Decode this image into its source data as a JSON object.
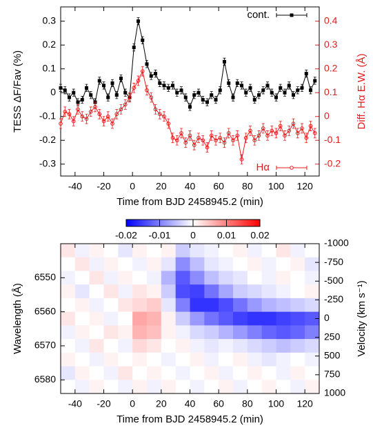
{
  "chart_data": [
    {
      "type": "line",
      "xlabel": "Time from BJD 2458945.2 (min)",
      "ylabel": "TESS ΔF/Fav (%)",
      "y2label": "Diff. Hα E.W. (Å)",
      "xlim": [
        -50,
        130
      ],
      "xticks": [
        -40,
        -20,
        0,
        20,
        40,
        60,
        80,
        100,
        120
      ],
      "ylim": [
        -0.35,
        0.36
      ],
      "yticks": [
        -0.3,
        -0.2,
        -0.1,
        0,
        0.1,
        0.2,
        0.3
      ],
      "y2lim": [
        -0.25,
        0.46
      ],
      "y2ticks": [
        -0.2,
        -0.1,
        0,
        0.1,
        0.2,
        0.3,
        0.4
      ],
      "x": [
        -50,
        -47,
        -44,
        -41,
        -38,
        -35,
        -32,
        -29,
        -26,
        -23,
        -20,
        -17,
        -14,
        -11,
        -8,
        -5,
        -2,
        1,
        4,
        7,
        10,
        13,
        16,
        19,
        22,
        25,
        28,
        31,
        34,
        37,
        40,
        43,
        46,
        49,
        52,
        55,
        58,
        61,
        64,
        67,
        70,
        73,
        76,
        79,
        82,
        85,
        88,
        91,
        94,
        97,
        100,
        103,
        106,
        109,
        112,
        115,
        118,
        121,
        124,
        127
      ],
      "series": [
        {
          "name": "cont.",
          "color": "#000000",
          "marker": "square",
          "legend": "top-right",
          "error": 0.015,
          "values": [
            0.02,
            0.01,
            -0.02,
            0,
            -0.04,
            -0.03,
            0.02,
            -0.01,
            -0.04,
            0.05,
            0.03,
            -0.02,
            0.04,
            -0.01,
            0.06,
            0,
            -0.02,
            0.19,
            0.3,
            0.22,
            0.12,
            0.07,
            0.08,
            0.04,
            0.03,
            0.02,
            0.03,
            0,
            0.01,
            -0.02,
            -0.06,
            -0.01,
            0,
            -0.03,
            -0.04,
            -0.01,
            -0.03,
            0.01,
            0.13,
            0.04,
            -0.02,
            0.04,
            0.03,
            0,
            0.02,
            -0.03,
            -0.01,
            0.01,
            0.03,
            0,
            -0.02,
            0.02,
            0,
            0.03,
            -0.01,
            0.01,
            0.02,
            0.08,
            0.01,
            0.05
          ]
        },
        {
          "name": "Hα",
          "color": "#e8191a",
          "marker": "circle",
          "legend": "bottom-right",
          "axis": "y2",
          "error": 0.02,
          "values": [
            -0.03,
            0.02,
            0.01,
            -0.02,
            0.03,
            0,
            -0.01,
            0.02,
            0.04,
            0.01,
            -0.02,
            0,
            -0.03,
            0.01,
            0.03,
            0.05,
            0.08,
            0.12,
            0.15,
            0.19,
            0.11,
            0.08,
            0.03,
            0.01,
            0,
            -0.03,
            -0.09,
            -0.1,
            -0.07,
            -0.11,
            -0.08,
            -0.12,
            -0.09,
            -0.1,
            -0.13,
            -0.08,
            -0.1,
            -0.09,
            -0.11,
            -0.07,
            -0.1,
            -0.08,
            -0.18,
            -0.09,
            -0.06,
            -0.1,
            -0.08,
            -0.05,
            -0.08,
            -0.06,
            -0.07,
            -0.04,
            -0.08,
            -0.06,
            -0.03,
            -0.07,
            -0.05,
            -0.09,
            -0.04,
            -0.07
          ]
        }
      ]
    },
    {
      "type": "heatmap",
      "xlabel": "Time from BJD 2458945.2 (min)",
      "ylabel": "Wavelength (Å)",
      "y2label": "Velocity (km s⁻¹)",
      "xlim": [
        -50,
        130
      ],
      "xticks": [
        -40,
        -20,
        0,
        20,
        40,
        60,
        80,
        100,
        120
      ],
      "ylim": [
        6540,
        6584
      ],
      "yticks": [
        6550,
        6560,
        6570,
        6580
      ],
      "y_reversed": true,
      "y2lim": [
        -1000,
        1000
      ],
      "y2ticks": [
        -1000,
        -750,
        -500,
        -250,
        0,
        250,
        500,
        750,
        1000
      ],
      "zlim": [
        -0.02,
        0.02
      ],
      "zticks": [
        -0.02,
        -0.01,
        0,
        0.01,
        0.02
      ],
      "colormap": [
        "#0000ff",
        "#ffffff",
        "#ff0000"
      ],
      "xbins": [
        -50,
        -40,
        -30,
        -20,
        -10,
        0,
        10,
        20,
        30,
        40,
        50,
        60,
        70,
        80,
        90,
        100,
        110,
        120,
        130
      ],
      "ybins": [
        6540,
        6544,
        6548,
        6552,
        6556,
        6560,
        6564,
        6568,
        6572,
        6576,
        6580,
        6584
      ],
      "z": [
        [
          0.002,
          -0.001,
          0.001,
          0,
          -0.002,
          0.001,
          0,
          0.001,
          -0.004,
          -0.002,
          -0.001,
          0,
          0.001,
          -0.001,
          0,
          0.002,
          -0.001,
          0
        ],
        [
          0,
          0.002,
          -0.001,
          0.001,
          0,
          -0.001,
          0.001,
          -0.002,
          -0.009,
          -0.005,
          -0.002,
          -0.001,
          0,
          0.001,
          -0.001,
          0,
          0.001,
          -0.002
        ],
        [
          -0.001,
          0,
          0.002,
          -0.001,
          0.001,
          0,
          -0.001,
          -0.006,
          -0.013,
          -0.009,
          -0.005,
          -0.003,
          -0.002,
          0,
          -0.001,
          0.001,
          0,
          -0.001
        ],
        [
          0.001,
          -0.002,
          0,
          0.002,
          -0.001,
          0.002,
          0.001,
          -0.004,
          -0.014,
          -0.015,
          -0.011,
          -0.007,
          -0.004,
          -0.003,
          -0.002,
          -0.001,
          0,
          0.001
        ],
        [
          0,
          0.001,
          -0.001,
          0,
          0.002,
          0.003,
          0.004,
          -0.002,
          -0.01,
          -0.016,
          -0.016,
          -0.014,
          -0.011,
          -0.008,
          -0.006,
          -0.005,
          -0.004,
          -0.003
        ],
        [
          0.002,
          0,
          0.001,
          -0.001,
          0,
          0.007,
          0.006,
          0.001,
          -0.004,
          -0.008,
          -0.011,
          -0.013,
          -0.015,
          -0.016,
          -0.016,
          -0.015,
          -0.014,
          -0.013
        ],
        [
          -0.001,
          0.001,
          0,
          0.002,
          0.001,
          0.006,
          0.005,
          0.001,
          -0.001,
          -0.003,
          -0.004,
          -0.006,
          -0.008,
          -0.01,
          -0.012,
          -0.013,
          -0.012,
          -0.01
        ],
        [
          0,
          -0.001,
          0.002,
          0,
          -0.001,
          0.003,
          0.002,
          0,
          0.001,
          -0.001,
          -0.002,
          -0.001,
          -0.002,
          -0.003,
          -0.004,
          -0.005,
          -0.004,
          -0.003
        ],
        [
          0.001,
          0,
          -0.001,
          0.001,
          0,
          0.001,
          0,
          -0.001,
          0,
          0.001,
          -0.001,
          0,
          0.001,
          -0.001,
          -0.002,
          -0.001,
          0,
          -0.001
        ],
        [
          -0.002,
          0.001,
          0,
          -0.001,
          0.002,
          0,
          0.001,
          0,
          -0.001,
          0,
          0.001,
          -0.001,
          0,
          0.001,
          0,
          -0.001,
          0.001,
          0
        ],
        [
          0,
          -0.001,
          0.001,
          0,
          -0.001,
          0.001,
          -0.001,
          0.001,
          0,
          -0.001,
          0,
          0.001,
          -0.001,
          0,
          0.001,
          0,
          -0.001,
          0.001
        ]
      ]
    }
  ]
}
